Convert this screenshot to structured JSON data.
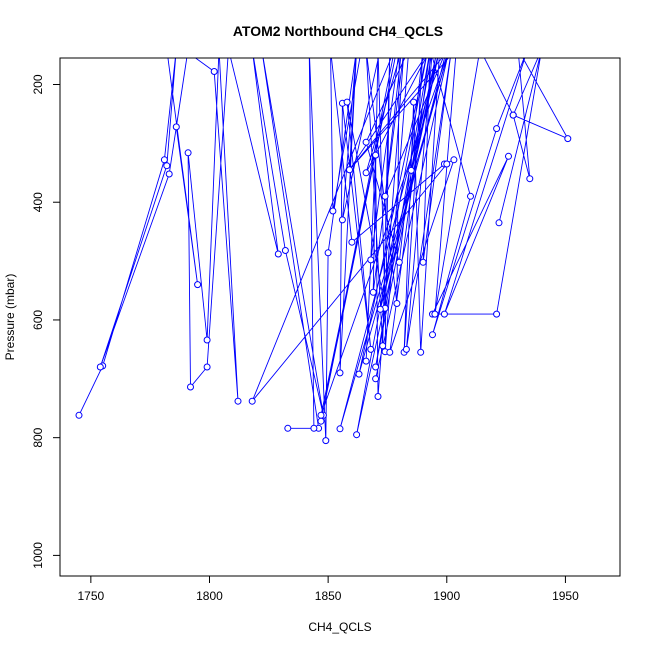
{
  "chart_data": {
    "type": "line",
    "title": "ATOM2 Northbound CH4_QCLS",
    "xlabel": "CH4_QCLS",
    "ylabel": "Pressure (mbar)",
    "xlim": [
      1737,
      1973
    ],
    "ylim": [
      1035,
      155
    ],
    "y_reversed": true,
    "grid": false,
    "x_ticks": [
      1750,
      1800,
      1850,
      1900,
      1950
    ],
    "y_ticks": [
      200,
      400,
      600,
      800,
      1000
    ],
    "color": "#0000ff",
    "series": [
      {
        "points": [
          [
            1745,
            762
          ],
          [
            1755,
            678
          ],
          [
            1781,
            328
          ],
          [
            1786,
            140
          ],
          [
            1782,
            338
          ],
          [
            1754,
            680
          ],
          [
            1783,
            352
          ],
          [
            1791,
            140
          ],
          [
            1786,
            272
          ],
          [
            1795,
            540
          ],
          [
            1782,
            140
          ],
          [
            1789,
            140
          ],
          [
            1802,
            178
          ],
          [
            1812,
            738
          ],
          [
            1804,
            140
          ],
          [
            1799,
            634
          ],
          [
            1791,
            316
          ],
          [
            1792,
            714
          ],
          [
            1799,
            680
          ],
          [
            1808,
            140
          ],
          [
            1829,
            488
          ],
          [
            1818,
            140
          ],
          [
            1832,
            482
          ],
          [
            1848,
            762
          ],
          [
            1822,
            140
          ],
          [
            1846,
            784
          ],
          [
            1833,
            784
          ],
          [
            1844,
            784
          ],
          [
            1842,
            140
          ],
          [
            1849,
            805
          ],
          [
            1850,
            486
          ],
          [
            1862,
            140
          ],
          [
            1855,
            690
          ],
          [
            1856,
            232
          ],
          [
            1868,
            650
          ],
          [
            1858,
            230
          ],
          [
            1874,
            580
          ],
          [
            1871,
            140
          ],
          [
            1869,
            553
          ],
          [
            1882,
            140
          ],
          [
            1871,
            730
          ],
          [
            1870,
            320
          ],
          [
            1866,
            670
          ],
          [
            1868,
            498
          ],
          [
            1880,
            140
          ],
          [
            1879,
            572
          ],
          [
            1866,
            140
          ],
          [
            1873,
            644
          ],
          [
            1876,
            140
          ],
          [
            1874,
            654
          ],
          [
            1884,
            140
          ],
          [
            1866,
            298
          ],
          [
            1880,
            502
          ],
          [
            1890,
            140
          ],
          [
            1882,
            655
          ],
          [
            1886,
            230
          ],
          [
            1889,
            655
          ],
          [
            1897,
            140
          ],
          [
            1872,
            582
          ],
          [
            1900,
            140
          ],
          [
            1874,
            390
          ],
          [
            1881,
            140
          ],
          [
            1866,
            350
          ],
          [
            1893,
            140
          ],
          [
            1859,
            345
          ],
          [
            1862,
            140
          ],
          [
            1856,
            430
          ],
          [
            1872,
            140
          ],
          [
            1864,
            140
          ],
          [
            1852,
            415
          ],
          [
            1851,
            140
          ],
          [
            1860,
            468
          ],
          [
            1899,
            335
          ],
          [
            1903,
            328
          ],
          [
            1876,
            655
          ],
          [
            1893,
            140
          ],
          [
            1870,
            680
          ],
          [
            1896,
            140
          ],
          [
            1885,
            346
          ],
          [
            1894,
            140
          ],
          [
            1883,
            650
          ],
          [
            1902,
            140
          ],
          [
            1890,
            502
          ],
          [
            1893,
            140
          ],
          [
            1910,
            390
          ],
          [
            1894,
            625
          ],
          [
            1921,
            275
          ],
          [
            1934,
            140
          ],
          [
            1899,
            590
          ],
          [
            1926,
            322
          ],
          [
            1894,
            590
          ],
          [
            1921,
            590
          ],
          [
            1940,
            140
          ],
          [
            1922,
            435
          ],
          [
            1940,
            140
          ],
          [
            1928,
            252
          ],
          [
            1951,
            292
          ],
          [
            1930,
            140
          ],
          [
            1935,
            360
          ],
          [
            1928,
            252
          ],
          [
            1914,
            140
          ],
          [
            1895,
            590
          ],
          [
            1904,
            140
          ],
          [
            1859,
            345
          ],
          [
            1901,
            140
          ],
          [
            1855,
            785
          ],
          [
            1897,
            140
          ],
          [
            1862,
            795
          ],
          [
            1892,
            140
          ],
          [
            1863,
            692
          ],
          [
            1901,
            140
          ],
          [
            1870,
            700
          ],
          [
            1901,
            140
          ],
          [
            1847,
            762
          ],
          [
            1879,
            140
          ],
          [
            1847,
            772
          ],
          [
            1878,
            140
          ],
          [
            1818,
            738
          ],
          [
            1900,
            335
          ]
        ]
      }
    ]
  }
}
